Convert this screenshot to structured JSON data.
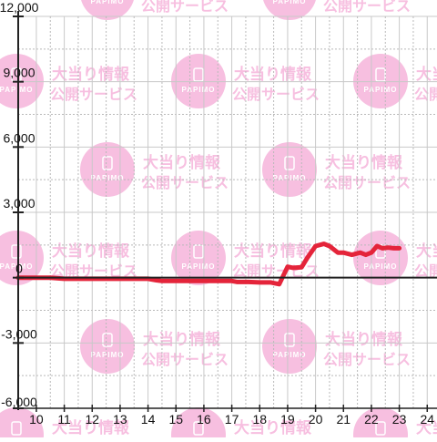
{
  "chart_data": {
    "type": "line",
    "title": "",
    "xlabel": "",
    "ylabel": "",
    "x_ticks": [
      "10",
      "11",
      "12",
      "13",
      "14",
      "15",
      "16",
      "17",
      "18",
      "19",
      "20",
      "21",
      "22",
      "23",
      "24"
    ],
    "y_ticks": [
      "12,000",
      "9,000",
      "6,000",
      "3,000",
      "0",
      "-3,000",
      "-6,000"
    ],
    "xlim": [
      9.35,
      24.35
    ],
    "ylim": [
      -6000,
      12000
    ],
    "grid": true,
    "legend": "none",
    "series": [
      {
        "color": "#e4243a",
        "x": [
          9.35,
          10.0,
          10.5,
          11.0,
          12.0,
          13.0,
          14.0,
          14.3,
          14.5,
          15.0,
          16.0,
          17.0,
          17.2,
          17.6,
          18.0,
          18.4,
          18.7,
          19.0,
          19.2,
          19.5,
          19.7,
          20.0,
          20.3,
          20.5,
          20.8,
          21.0,
          21.3,
          21.6,
          21.8,
          22.0,
          22.2,
          22.4,
          22.6,
          22.8,
          23.0
        ],
        "y": [
          0,
          0,
          0,
          -50,
          -50,
          -50,
          -50,
          -120,
          -150,
          -150,
          -150,
          -150,
          -200,
          -200,
          -220,
          -220,
          -300,
          500,
          450,
          480,
          900,
          1450,
          1550,
          1450,
          1150,
          1150,
          1050,
          1150,
          1050,
          1150,
          1450,
          1350,
          1380,
          1350,
          1350
        ]
      }
    ]
  },
  "watermark": {
    "line1": "大当り情報",
    "line2": "公開サービス",
    "logo_text": "PAPIMO",
    "color": "#f7bfe0"
  },
  "colors": {
    "axis": "#222222",
    "grid_dotted": "#b9b9b9",
    "grid_solid": "#c8c8c8",
    "tick_label": "#111111",
    "background": "#ffffff"
  }
}
